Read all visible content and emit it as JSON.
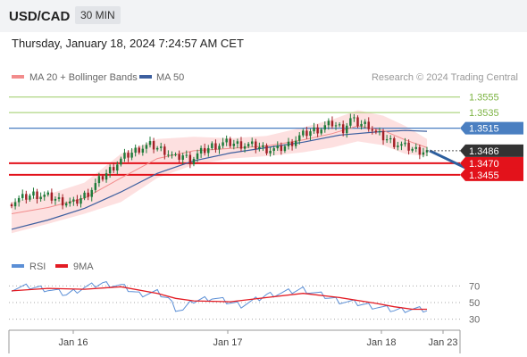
{
  "header": {
    "symbol": "USD/CAD",
    "timeframe": "30 MIN",
    "datetime": "Thursday, January 18, 2024 7:24:57 AM CET"
  },
  "legend": {
    "ma20": "MA 20 + Bollinger Bands",
    "ma50": "MA 50",
    "credit": "Research © 2024 Trading Central"
  },
  "colors": {
    "resistance": "#9ccc65",
    "pivot": "#4a7fc1",
    "support": "#e3121b",
    "candle_up": "#1e7b3a",
    "candle_down": "#a31f26",
    "bands": "#fcd5d5",
    "ma20": "#f28c8c",
    "ma50": "#3d5f9f",
    "rsi": "#5b8fd6",
    "rsi_ma": "#e31b23",
    "arrow": "#2d5f9e",
    "current_price_bg": "#333333"
  },
  "chart_data": [
    {
      "type": "candlestick",
      "title": "USD/CAD",
      "timeframe": "30 MIN",
      "ylim": [
        1.337,
        1.3565
      ],
      "x_ticks": [
        "Jan 16",
        "Jan 17",
        "Jan 18",
        "Jan 23"
      ],
      "levels": [
        {
          "label": "1.3555",
          "value": 1.3555,
          "kind": "resistance"
        },
        {
          "label": "1.3535",
          "value": 1.3535,
          "kind": "resistance"
        },
        {
          "label": "1.3515",
          "value": 1.3515,
          "kind": "pivot"
        },
        {
          "label": "1.3470",
          "value": 1.347,
          "kind": "support"
        },
        {
          "label": "1.3455",
          "value": 1.3455,
          "kind": "support"
        }
      ],
      "current_price": {
        "label": "1.3486",
        "value": 1.3486
      },
      "close_path": [
        [
          0,
          1.342
        ],
        [
          6,
          1.343
        ],
        [
          10,
          1.3427
        ],
        [
          14,
          1.3421
        ],
        [
          17,
          1.3418
        ],
        [
          21,
          1.3432
        ],
        [
          24,
          1.3448
        ],
        [
          28,
          1.3466
        ],
        [
          31,
          1.3478
        ],
        [
          35,
          1.3489
        ],
        [
          38,
          1.3493
        ],
        [
          42,
          1.3486
        ],
        [
          45,
          1.3476
        ],
        [
          47,
          1.348
        ],
        [
          49,
          1.3474
        ],
        [
          52,
          1.3484
        ],
        [
          55,
          1.3492
        ],
        [
          59,
          1.3496
        ],
        [
          63,
          1.3494
        ],
        [
          67,
          1.3492
        ],
        [
          70,
          1.3488
        ],
        [
          73,
          1.3487
        ],
        [
          76,
          1.3494
        ],
        [
          79,
          1.3504
        ],
        [
          82,
          1.3511
        ],
        [
          85,
          1.3515
        ],
        [
          88,
          1.3521
        ],
        [
          91,
          1.3514
        ],
        [
          93,
          1.3526
        ],
        [
          95,
          1.3521
        ],
        [
          98,
          1.3519
        ],
        [
          100,
          1.3508
        ],
        [
          102,
          1.3503
        ],
        [
          105,
          1.3496
        ],
        [
          108,
          1.3491
        ],
        [
          111,
          1.3487
        ],
        [
          114,
          1.3485
        ]
      ],
      "ma20_path": [
        [
          0,
          1.3405
        ],
        [
          10,
          1.3413
        ],
        [
          20,
          1.3425
        ],
        [
          30,
          1.3451
        ],
        [
          40,
          1.3476
        ],
        [
          50,
          1.3486
        ],
        [
          60,
          1.3489
        ],
        [
          70,
          1.3492
        ],
        [
          80,
          1.35
        ],
        [
          88,
          1.3508
        ],
        [
          95,
          1.3518
        ],
        [
          102,
          1.3512
        ],
        [
          108,
          1.35
        ],
        [
          114,
          1.349
        ]
      ],
      "ma50_path": [
        [
          0,
          1.3385
        ],
        [
          10,
          1.3397
        ],
        [
          20,
          1.3412
        ],
        [
          30,
          1.3433
        ],
        [
          40,
          1.3457
        ],
        [
          50,
          1.3473
        ],
        [
          60,
          1.3483
        ],
        [
          70,
          1.349
        ],
        [
          80,
          1.3497
        ],
        [
          90,
          1.3506
        ],
        [
          100,
          1.351
        ],
        [
          108,
          1.3512
        ],
        [
          114,
          1.3511
        ]
      ],
      "bb_upper_path": [
        [
          0,
          1.342
        ],
        [
          10,
          1.343
        ],
        [
          20,
          1.3445
        ],
        [
          30,
          1.3482
        ],
        [
          40,
          1.3501
        ],
        [
          50,
          1.3504
        ],
        [
          60,
          1.3502
        ],
        [
          70,
          1.3505
        ],
        [
          80,
          1.3516
        ],
        [
          88,
          1.3526
        ],
        [
          95,
          1.3538
        ],
        [
          102,
          1.3531
        ],
        [
          108,
          1.3518
        ],
        [
          114,
          1.3501
        ]
      ],
      "bb_lower_path": [
        [
          0,
          1.338
        ],
        [
          10,
          1.3392
        ],
        [
          20,
          1.3405
        ],
        [
          30,
          1.342
        ],
        [
          40,
          1.3451
        ],
        [
          50,
          1.3468
        ],
        [
          60,
          1.3476
        ],
        [
          70,
          1.3479
        ],
        [
          80,
          1.3484
        ],
        [
          88,
          1.349
        ],
        [
          95,
          1.3498
        ],
        [
          102,
          1.3493
        ],
        [
          108,
          1.3482
        ],
        [
          114,
          1.3479
        ]
      ],
      "forecast_arrow": {
        "from": [
          114,
          1.3486
        ],
        "to": [
          126,
          1.3455
        ]
      }
    },
    {
      "type": "line",
      "title": "RSI",
      "ylim": [
        20,
        80
      ],
      "y_ticks": [
        70,
        50,
        30
      ],
      "series": [
        {
          "name": "RSI",
          "points": [
            [
              0,
              67
            ],
            [
              5,
              69
            ],
            [
              10,
              66
            ],
            [
              15,
              60
            ],
            [
              20,
              68
            ],
            [
              25,
              73
            ],
            [
              30,
              70
            ],
            [
              35,
              60
            ],
            [
              40,
              62
            ],
            [
              43,
              55
            ],
            [
              45,
              43
            ],
            [
              47,
              41
            ],
            [
              50,
              52
            ],
            [
              55,
              56
            ],
            [
              60,
              50
            ],
            [
              63,
              47
            ],
            [
              66,
              51
            ],
            [
              70,
              59
            ],
            [
              75,
              62
            ],
            [
              80,
              66
            ],
            [
              85,
              59
            ],
            [
              90,
              52
            ],
            [
              95,
              49
            ],
            [
              100,
              45
            ],
            [
              105,
              41
            ],
            [
              110,
              42
            ],
            [
              114,
              41
            ]
          ]
        },
        {
          "name": "9MA",
          "points": [
            [
              0,
              64
            ],
            [
              10,
              67
            ],
            [
              20,
              66
            ],
            [
              30,
              69
            ],
            [
              40,
              61
            ],
            [
              45,
              55
            ],
            [
              50,
              52
            ],
            [
              60,
              51
            ],
            [
              70,
              56
            ],
            [
              80,
              61
            ],
            [
              90,
              56
            ],
            [
              100,
              49
            ],
            [
              105,
              45
            ],
            [
              110,
              42
            ],
            [
              114,
              42
            ]
          ]
        }
      ]
    }
  ]
}
